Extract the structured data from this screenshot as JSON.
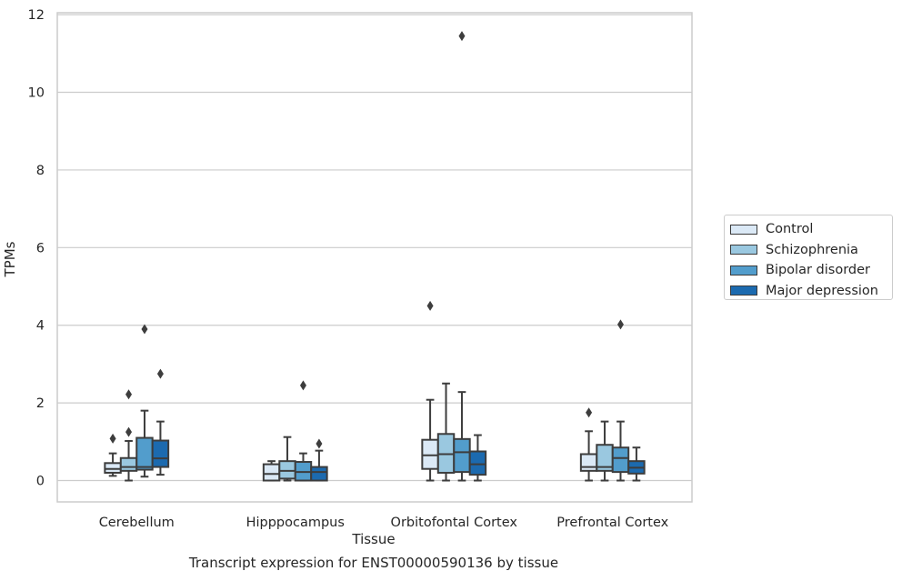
{
  "chart_data": {
    "type": "box",
    "title": "",
    "caption": "Transcript expression for ENST00000590136 by tissue",
    "xlabel": "Tissue",
    "ylabel": "TPMs",
    "ylim": [
      -0.55,
      12.05
    ],
    "yticks": [
      0,
      2,
      4,
      6,
      8,
      10,
      12
    ],
    "grid": true,
    "legend_position": "right",
    "categories": [
      "Cerebellum",
      "Hipppocampus",
      "Orbitofontal Cortex",
      "Prefrontal Cortex"
    ],
    "series": [
      {
        "name": "Control",
        "color": "#dbe9f6",
        "boxes": [
          {
            "whislo": 0.12,
            "q1": 0.2,
            "med": 0.3,
            "q3": 0.45,
            "whishi": 0.7,
            "fliers": [
              1.08
            ]
          },
          {
            "whislo": 0.0,
            "q1": 0.0,
            "med": 0.17,
            "q3": 0.42,
            "whishi": 0.5,
            "fliers": []
          },
          {
            "whislo": 0.0,
            "q1": 0.3,
            "med": 0.65,
            "q3": 1.05,
            "whishi": 2.08,
            "fliers": [
              4.5
            ]
          },
          {
            "whislo": 0.0,
            "q1": 0.25,
            "med": 0.35,
            "q3": 0.68,
            "whishi": 1.27,
            "fliers": [
              1.75
            ]
          }
        ]
      },
      {
        "name": "Schizophrenia",
        "color": "#9ac8e0",
        "boxes": [
          {
            "whislo": 0.0,
            "q1": 0.25,
            "med": 0.35,
            "q3": 0.58,
            "whishi": 1.02,
            "fliers": [
              1.25,
              2.22
            ]
          },
          {
            "whislo": 0.0,
            "q1": 0.05,
            "med": 0.25,
            "q3": 0.5,
            "whishi": 1.12,
            "fliers": []
          },
          {
            "whislo": 0.0,
            "q1": 0.2,
            "med": 0.68,
            "q3": 1.2,
            "whishi": 2.5,
            "fliers": []
          },
          {
            "whislo": 0.0,
            "q1": 0.25,
            "med": 0.35,
            "q3": 0.92,
            "whishi": 1.52,
            "fliers": []
          }
        ]
      },
      {
        "name": "Bipolar disorder",
        "color": "#529dcc",
        "boxes": [
          {
            "whislo": 0.1,
            "q1": 0.28,
            "med": 0.35,
            "q3": 1.1,
            "whishi": 1.8,
            "fliers": [
              3.9
            ]
          },
          {
            "whislo": 0.0,
            "q1": 0.0,
            "med": 0.22,
            "q3": 0.48,
            "whishi": 0.7,
            "fliers": [
              2.45
            ]
          },
          {
            "whislo": 0.0,
            "q1": 0.22,
            "med": 0.73,
            "q3": 1.07,
            "whishi": 2.28,
            "fliers": [
              11.45
            ]
          },
          {
            "whislo": 0.0,
            "q1": 0.22,
            "med": 0.58,
            "q3": 0.85,
            "whishi": 1.52,
            "fliers": [
              4.02
            ]
          }
        ]
      },
      {
        "name": "Major depression",
        "color": "#1c6aaf",
        "boxes": [
          {
            "whislo": 0.15,
            "q1": 0.35,
            "med": 0.57,
            "q3": 1.03,
            "whishi": 1.52,
            "fliers": [
              2.75
            ]
          },
          {
            "whislo": 0.0,
            "q1": 0.0,
            "med": 0.22,
            "q3": 0.35,
            "whishi": 0.77,
            "fliers": [
              0.95
            ]
          },
          {
            "whislo": 0.0,
            "q1": 0.15,
            "med": 0.42,
            "q3": 0.75,
            "whishi": 1.17,
            "fliers": []
          },
          {
            "whislo": 0.0,
            "q1": 0.18,
            "med": 0.33,
            "q3": 0.5,
            "whishi": 0.85,
            "fliers": []
          }
        ]
      }
    ]
  }
}
